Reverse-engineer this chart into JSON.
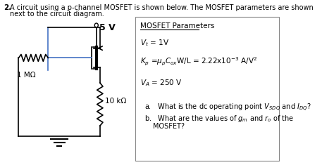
{
  "bg_color": "#ffffff",
  "fig_width": 4.74,
  "fig_height": 2.35,
  "box_title": "MOSFET Parameters",
  "label_5v": "5 V",
  "label_1m": "1 MΩ",
  "label_10k": "10 kΩ"
}
